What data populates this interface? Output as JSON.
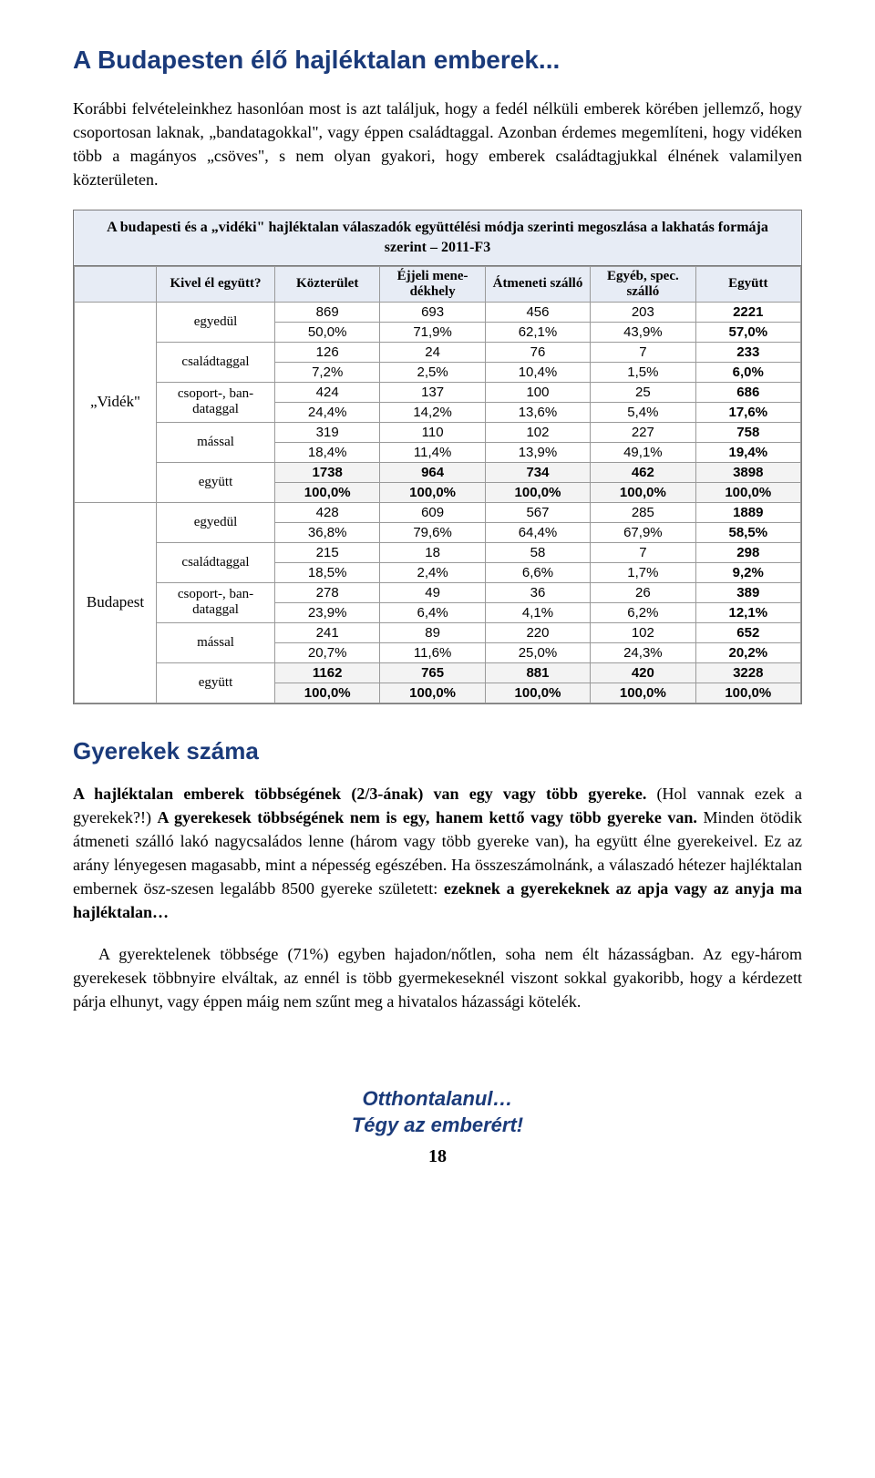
{
  "title": "A Budapesten élő hajléktalan emberek...",
  "para1": "Korábbi felvételeinkhez hasonlóan most is azt találjuk, hogy a fedél nélküli emberek körében jellemző, hogy csoportosan laknak, „bandatagokkal\", vagy éppen családtaggal. Azonban érdemes megemlíteni, hogy vidéken több a magányos „csöves\", s nem olyan gyakori, hogy emberek családtagjukkal élnének valamilyen közterületen.",
  "table": {
    "caption": "A budapesti és a „vidéki\" hajléktalan válaszadók együttélési módja szerinti megoszlása a lakhatás formája szerint – 2011-F3",
    "header_whom": "Kivel él együtt?",
    "headers": [
      "Közterület",
      "Éjjeli mene-\ndékhely",
      "Átmeneti szálló",
      "Egyéb, spec. szálló",
      "Együtt"
    ],
    "regions": [
      {
        "label": "„Vidék\"",
        "rows": [
          {
            "whom": "egyedül",
            "counts": [
              "869",
              "693",
              "456",
              "203",
              "2221"
            ],
            "pcts": [
              "50,0%",
              "71,9%",
              "62,1%",
              "43,9%",
              "57,0%"
            ]
          },
          {
            "whom": "családtaggal",
            "counts": [
              "126",
              "24",
              "76",
              "7",
              "233"
            ],
            "pcts": [
              "7,2%",
              "2,5%",
              "10,4%",
              "1,5%",
              "6,0%"
            ]
          },
          {
            "whom": "csoport-, ban-\ndataggal",
            "counts": [
              "424",
              "137",
              "100",
              "25",
              "686"
            ],
            "pcts": [
              "24,4%",
              "14,2%",
              "13,6%",
              "5,4%",
              "17,6%"
            ]
          },
          {
            "whom": "mással",
            "counts": [
              "319",
              "110",
              "102",
              "227",
              "758"
            ],
            "pcts": [
              "18,4%",
              "11,4%",
              "13,9%",
              "49,1%",
              "19,4%"
            ]
          },
          {
            "whom": "együtt",
            "subtotal": true,
            "counts": [
              "1738",
              "964",
              "734",
              "462",
              "3898"
            ],
            "pcts": [
              "100,0%",
              "100,0%",
              "100,0%",
              "100,0%",
              "100,0%"
            ]
          }
        ]
      },
      {
        "label": "Budapest",
        "rows": [
          {
            "whom": "egyedül",
            "counts": [
              "428",
              "609",
              "567",
              "285",
              "1889"
            ],
            "pcts": [
              "36,8%",
              "79,6%",
              "64,4%",
              "67,9%",
              "58,5%"
            ]
          },
          {
            "whom": "családtaggal",
            "counts": [
              "215",
              "18",
              "58",
              "7",
              "298"
            ],
            "pcts": [
              "18,5%",
              "2,4%",
              "6,6%",
              "1,7%",
              "9,2%"
            ]
          },
          {
            "whom": "csoport-, ban-\ndataggal",
            "counts": [
              "278",
              "49",
              "36",
              "26",
              "389"
            ],
            "pcts": [
              "23,9%",
              "6,4%",
              "4,1%",
              "6,2%",
              "12,1%"
            ]
          },
          {
            "whom": "mással",
            "counts": [
              "241",
              "89",
              "220",
              "102",
              "652"
            ],
            "pcts": [
              "20,7%",
              "11,6%",
              "25,0%",
              "24,3%",
              "20,2%"
            ]
          },
          {
            "whom": "együtt",
            "subtotal": true,
            "counts": [
              "1162",
              "765",
              "881",
              "420",
              "3228"
            ],
            "pcts": [
              "100,0%",
              "100,0%",
              "100,0%",
              "100,0%",
              "100,0%"
            ]
          }
        ]
      }
    ]
  },
  "section_heading": "Gyerekek száma",
  "para2_parts": [
    {
      "b": true,
      "t": "A hajléktalan emberek többségének (2/3-ának) van egy vagy több gyereke."
    },
    {
      "b": false,
      "t": " (Hol vannak ezek a gyerekek?!) "
    },
    {
      "b": true,
      "t": "A gyerekesek többségének nem is egy, hanem kettő vagy több gyereke van."
    },
    {
      "b": false,
      "t": " Minden ötödik átmeneti szálló lakó nagycsaládos lenne (három vagy több gyereke van), ha együtt élne gyerekeivel. Ez az arány lényegesen magasabb, mint a népesség egészében. Ha összeszámolnánk, a válaszadó hétezer hajléktalan embernek ösz-szesen legalább 8500 gyereke született: "
    },
    {
      "b": true,
      "t": "ezeknek a gyerekeknek az apja vagy az anyja ma hajléktalan…"
    }
  ],
  "para3": "A gyerektelenek többsége (71%) egyben hajadon/nőtlen, soha nem élt házasságban. Az egy-három gyerekesek többnyire elváltak, az ennél is több gyermekeseknél viszont sokkal gyakoribb, hogy a kérdezett párja elhunyt, vagy éppen máig nem szűnt meg a hivatalos házassági kötelék.",
  "footer_line1": "Otthontalanul…",
  "footer_line2": "Tégy az emberért!",
  "page_number": "18"
}
